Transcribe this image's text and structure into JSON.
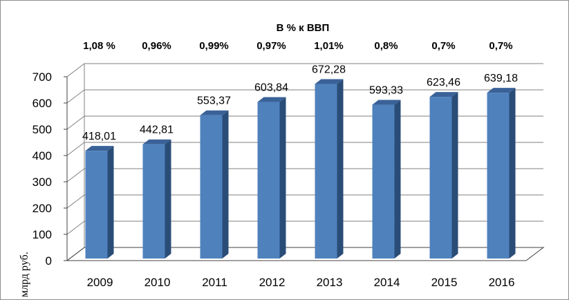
{
  "chart_data": {
    "type": "bar",
    "categories": [
      "2009",
      "2010",
      "2011",
      "2012",
      "2013",
      "2014",
      "2015",
      "2016"
    ],
    "values": [
      418.01,
      442.81,
      553.37,
      603.84,
      672.28,
      593.33,
      623.46,
      639.18
    ],
    "value_labels": [
      "418,01",
      "442,81",
      "553,37",
      "603,84",
      "672,28",
      "593,33",
      "623,46",
      "639,18"
    ],
    "gdp_share_title": "В % к ВВП",
    "gdp_share_labels": [
      "1,08 %",
      "0,96%",
      "0,99%",
      "0,97%",
      "1,01%",
      "0,8%",
      "0,7%",
      "0,7%"
    ],
    "ylabel": "млрд руб.",
    "y_ticks": [
      "0",
      "100",
      "200",
      "300",
      "400",
      "500",
      "600",
      "700"
    ],
    "ylim": [
      0,
      700
    ],
    "grid": true,
    "style": "3d-column",
    "colors": {
      "bar_front": "#4f81bd",
      "bar_side": "#2a4d78",
      "bar_top": "#3a6298",
      "grid": "#7f7f7f"
    }
  }
}
